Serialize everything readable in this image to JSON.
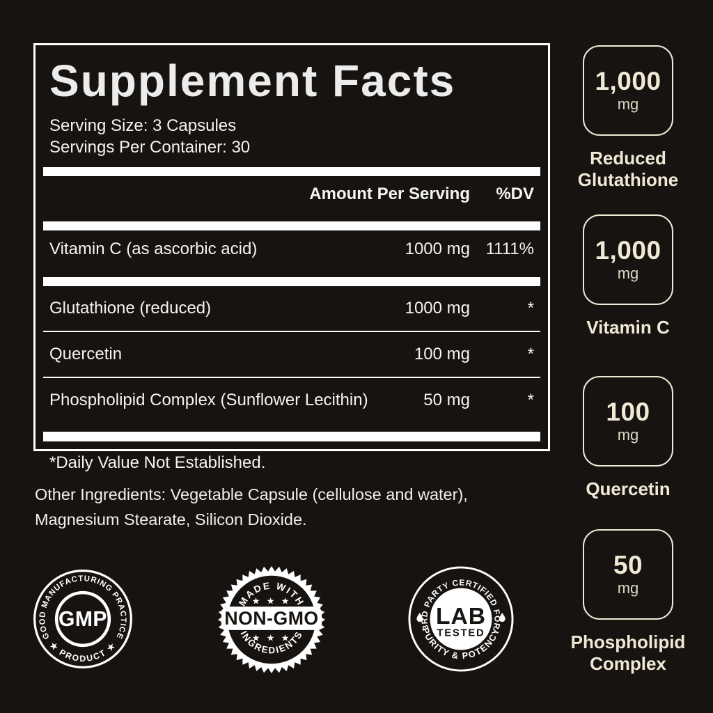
{
  "colors": {
    "background": "#171310",
    "panel_text": "#f4f4f4",
    "bar_white": "#ffffff",
    "cream": "#f1e9d6",
    "dark_text": "#181411"
  },
  "panel": {
    "title": "Supplement Facts",
    "serving_size": "Serving Size: 3 Capsules",
    "servings_per_container": "Servings Per Container: 30",
    "header": {
      "amount": "Amount Per Serving",
      "dv": "%DV"
    },
    "rows": [
      {
        "name": "Vitamin C (as ascorbic acid)",
        "amount": "1000 mg",
        "dv": "1111%"
      },
      {
        "name": "Glutathione (reduced)",
        "amount": "1000 mg",
        "dv": "*"
      },
      {
        "name": "Quercetin",
        "amount": "100 mg",
        "dv": "*"
      },
      {
        "name": "Phospholipid Complex (Sunflower Lecithin)",
        "amount": "50 mg",
        "dv": "*"
      }
    ],
    "footnote": "*Daily Value Not Established."
  },
  "other_ingredients": "Other Ingredients: Vegetable Capsule (cellulose and water), Magnesium Stearate, Silicon Dioxide.",
  "badges": {
    "gmp": {
      "arc_top": "GOOD MANUFACTURING PRACTICE",
      "arc_bottom": "★ PRODUCT ★",
      "center": "GMP"
    },
    "non_gmo": {
      "arc_top": "MADE WITH",
      "stars_top": "★ ★ ★",
      "label": "NON-GMO",
      "stars_bottom": "★ ★ ★",
      "arc_bottom": "INGREDIENTS"
    },
    "lab": {
      "arc_top": "3RD PARTY CERTIFIED FOR",
      "center_line1": "LAB",
      "center_line2": "TESTED",
      "arc_bottom": "PURITY & POTENCY"
    }
  },
  "highlights": [
    {
      "value": "1,000",
      "unit": "mg",
      "label": "Reduced Glutathione"
    },
    {
      "value": "1,000",
      "unit": "mg",
      "label": "Vitamin C"
    },
    {
      "value": "100",
      "unit": "mg",
      "label": "Quercetin"
    },
    {
      "value": "50",
      "unit": "mg",
      "label": "Phospholipid Complex"
    }
  ]
}
